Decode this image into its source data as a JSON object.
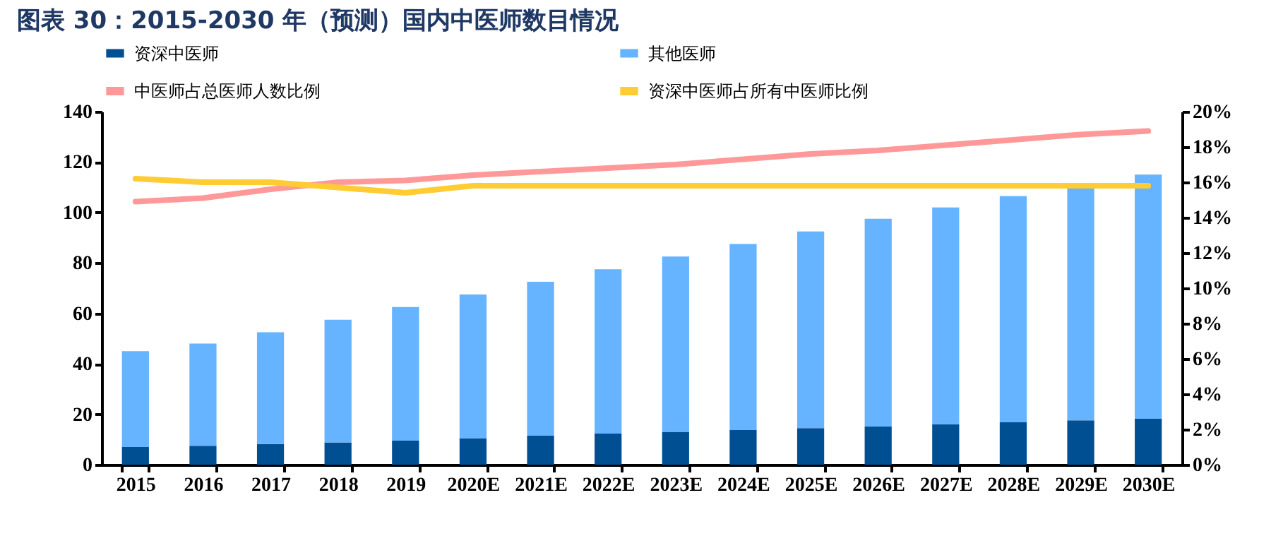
{
  "chart_data": {
    "type": "bar",
    "title": "图表 30：2015-2030 年（预测）国内中医师数目情况",
    "categories": [
      "2015",
      "2016",
      "2017",
      "2018",
      "2019",
      "2020E",
      "2021E",
      "2022E",
      "2023E",
      "2024E",
      "2025E",
      "2026E",
      "2027E",
      "2028E",
      "2029E",
      "2030E"
    ],
    "stacked": true,
    "series": [
      {
        "name": "资深中医师",
        "color": "#004f93",
        "values": [
          7,
          7.5,
          8.2,
          8.8,
          9.5,
          10.5,
          11.5,
          12.3,
          13,
          13.7,
          14.5,
          15.2,
          16,
          16.8,
          17.6,
          18.2
        ]
      },
      {
        "name": "其他医师",
        "color": "#66b3ff",
        "values": [
          38,
          40.5,
          44.3,
          48.7,
          53,
          57,
          61,
          65.2,
          69.5,
          73.8,
          78,
          82.3,
          86,
          89.7,
          93.4,
          96.8
        ]
      },
      {
        "name": "中医师占总医师人数比例",
        "type": "line",
        "axis": "y2",
        "color": "#ff9999",
        "values": [
          14.9,
          15.1,
          15.6,
          16.0,
          16.1,
          16.4,
          16.6,
          16.8,
          17.0,
          17.3,
          17.6,
          17.8,
          18.1,
          18.4,
          18.7,
          18.9
        ]
      },
      {
        "name": "资深中医师占所有中医师比例",
        "type": "line",
        "axis": "y2",
        "color": "#ffcc33",
        "values": [
          16.2,
          16.0,
          16.0,
          15.7,
          15.4,
          15.8,
          15.8,
          15.8,
          15.8,
          15.8,
          15.8,
          15.8,
          15.8,
          15.8,
          15.8,
          15.8
        ]
      }
    ],
    "ylim": [
      0,
      140
    ],
    "yticks": [
      0,
      20,
      40,
      60,
      80,
      100,
      120,
      140
    ],
    "y2lim": [
      0,
      20
    ],
    "y2ticks": [
      {
        "value": 0,
        "label": "0%"
      },
      {
        "value": 2,
        "label": "2%"
      },
      {
        "value": 4,
        "label": "4%"
      },
      {
        "value": 6,
        "label": "6%"
      },
      {
        "value": 8,
        "label": "8%"
      },
      {
        "value": 10,
        "label": "10%"
      },
      {
        "value": 12,
        "label": "12%"
      },
      {
        "value": 14,
        "label": "14%"
      },
      {
        "value": 16,
        "label": "16%"
      },
      {
        "value": 18,
        "label": "18%"
      },
      {
        "value": 20,
        "label": "20%"
      }
    ],
    "grid": false,
    "legend": "top"
  }
}
